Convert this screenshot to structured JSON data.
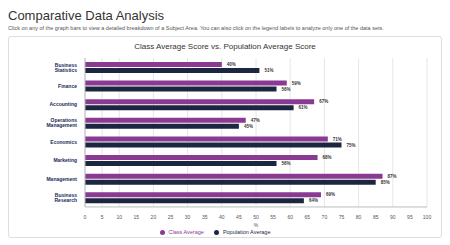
{
  "page": {
    "title": "Comparative Data Analysis",
    "description": "Click on any of the graph bars to view a detailed breakdown of a Subject Area. You can also click on the legend labels to analyze only one of the data sets."
  },
  "chart_data": {
    "type": "bar",
    "title": "Class Average Score vs. Population Average Score",
    "orientation": "horizontal",
    "categories": [
      "Business Statistics",
      "Finance",
      "Accounting",
      "Operations Management",
      "Economics",
      "Marketing",
      "Management",
      "Business Research"
    ],
    "series": [
      {
        "name": "Class Average",
        "color": "#8b3a94",
        "values": [
          40,
          59,
          67,
          47,
          71,
          68,
          87,
          69
        ],
        "value_labels": [
          "40%",
          "59%",
          "67%",
          "47%",
          "71%",
          "68%",
          "87%",
          "69%"
        ]
      },
      {
        "name": "Population Average",
        "color": "#1c2640",
        "values": [
          51,
          56,
          61,
          45,
          75,
          56,
          85,
          64
        ],
        "value_labels": [
          "51%",
          "56%",
          "61%",
          "45%",
          "75%",
          "56%",
          "85%",
          "64%"
        ]
      }
    ],
    "xlabel": "%",
    "xlim": [
      0,
      100
    ],
    "xticks": [
      0,
      5,
      10,
      15,
      20,
      25,
      30,
      35,
      40,
      45,
      50,
      55,
      60,
      65,
      70,
      75,
      80,
      85,
      90,
      95,
      100
    ],
    "grid": true,
    "data_labels": true,
    "legend": "bottom"
  }
}
